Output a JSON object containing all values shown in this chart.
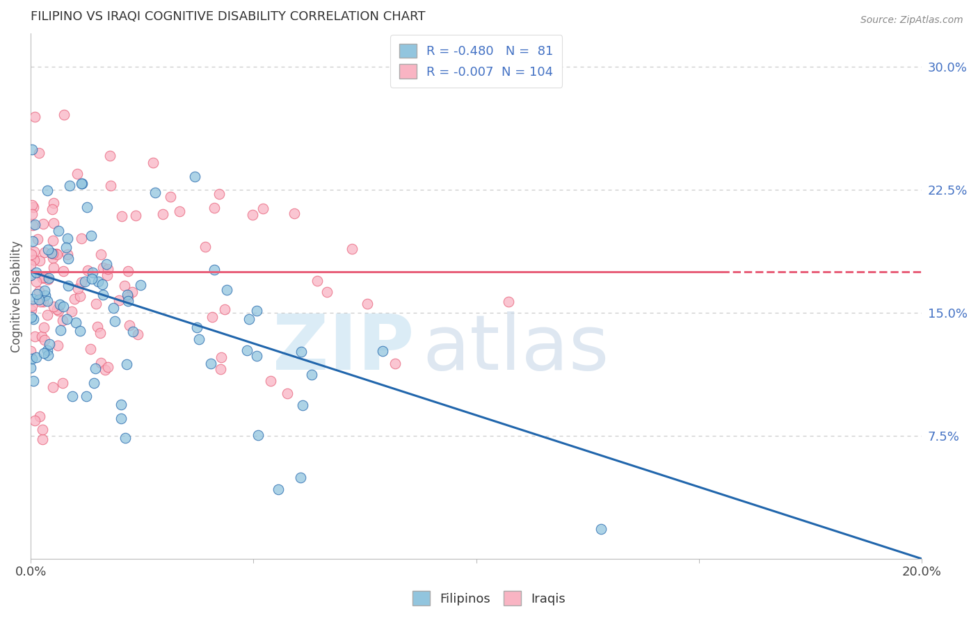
{
  "title": "FILIPINO VS IRAQI COGNITIVE DISABILITY CORRELATION CHART",
  "source": "Source: ZipAtlas.com",
  "ylabel": "Cognitive Disability",
  "legend_filipino_label": "Filipinos",
  "legend_iraqi_label": "Iraqis",
  "r_filipino": -0.48,
  "n_filipino": 81,
  "r_iraqi": -0.007,
  "n_iraqi": 104,
  "filipino_color": "#92C5DE",
  "iraqi_color": "#F9B4C3",
  "filipino_line_color": "#2166AC",
  "iraqi_line_color": "#E8607A",
  "xlim": [
    0.0,
    0.2
  ],
  "ylim": [
    0.0,
    0.32
  ],
  "background_color": "#FFFFFF",
  "grid_color": "#CCCCCC",
  "title_color": "#333333",
  "axis_label_color": "#4472C4",
  "iraqi_line_y_intercept": 0.175,
  "iraqi_line_slope": 0.0,
  "fil_line_y_start": 0.175,
  "fil_line_y_end": 0.0,
  "fil_line_x_start": 0.0,
  "fil_line_x_end": 0.2
}
